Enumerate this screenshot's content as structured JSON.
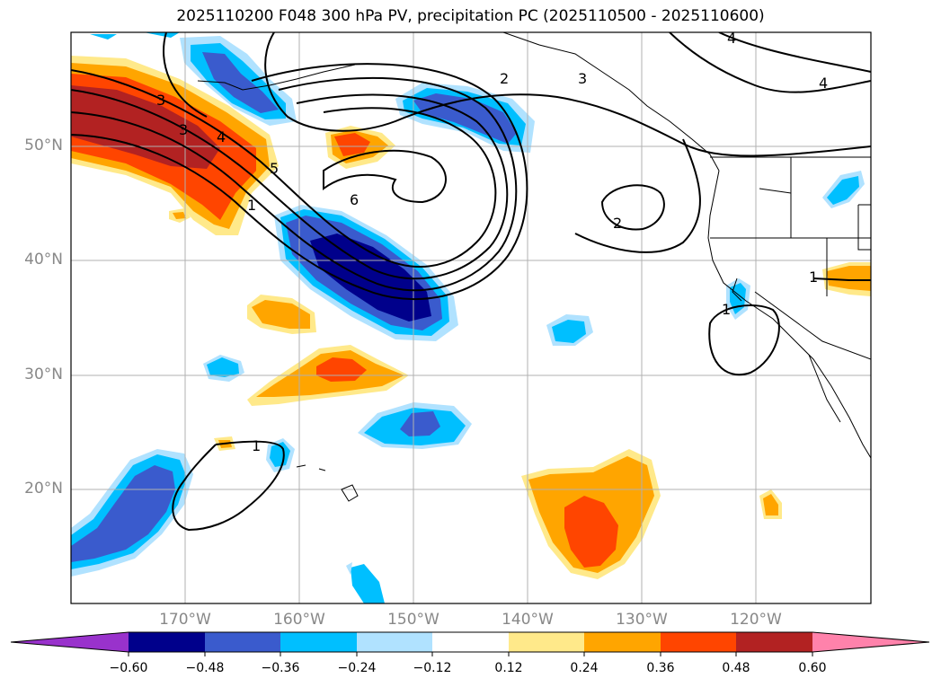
{
  "title": "2025110200 F048 300 hPa PV, precipitation PC (2025110500 - 2025110600)",
  "lat_labels": [
    "50°N",
    "40°N",
    "30°N",
    "20°N"
  ],
  "lon_labels": [
    "170°W",
    "160°W",
    "150°W",
    "140°W",
    "130°W",
    "120°W"
  ],
  "contour_labels": [
    "3",
    "3",
    "4",
    "5",
    "1",
    "6",
    "2",
    "4",
    "4",
    "3",
    "2",
    "1",
    "1",
    "1"
  ],
  "colorbar": {
    "ticks": [
      "−0.60",
      "−0.48",
      "−0.36",
      "−0.24",
      "−0.12",
      "0.12",
      "0.24",
      "0.36",
      "0.48",
      "0.60"
    ],
    "colors": [
      "#9932cc",
      "#00008b",
      "#3a5bcd",
      "#00bfff",
      "#b0e2ff",
      "#ffffff",
      "#ffe98a",
      "#ffa500",
      "#ff4500",
      "#b22222",
      "#ff82ab"
    ]
  }
}
